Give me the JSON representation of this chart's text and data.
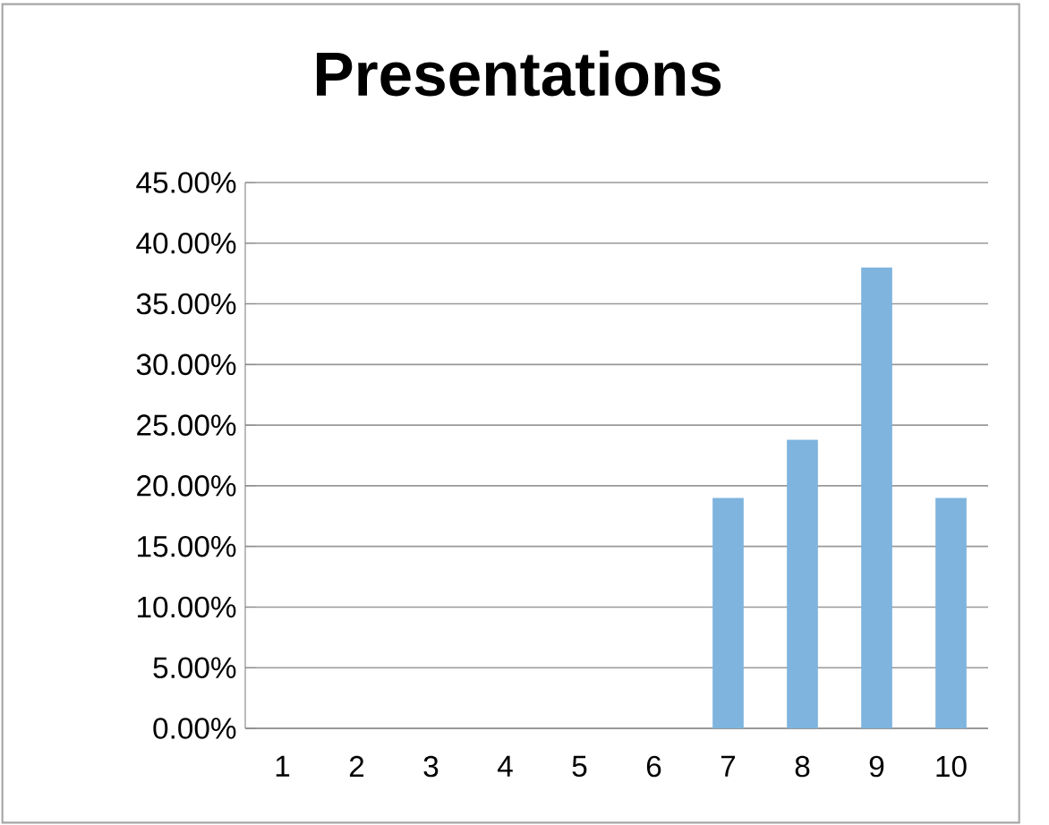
{
  "chart_data": {
    "type": "bar",
    "title": "Presentations",
    "categories": [
      "1",
      "2",
      "3",
      "4",
      "5",
      "6",
      "7",
      "8",
      "9",
      "10"
    ],
    "values": [
      0,
      0,
      0,
      0,
      0,
      0,
      19.0,
      23.8,
      38.0,
      19.0
    ],
    "color": "#7eb4de",
    "ylim": [
      0,
      45
    ],
    "yticks": [
      {
        "value": 0,
        "label": "0.00%"
      },
      {
        "value": 5,
        "label": "5.00%"
      },
      {
        "value": 10,
        "label": "10.00%"
      },
      {
        "value": 15,
        "label": "15.00%"
      },
      {
        "value": 20,
        "label": "20.00%"
      },
      {
        "value": 25,
        "label": "25.00%"
      },
      {
        "value": 30,
        "label": "30.00%"
      },
      {
        "value": 35,
        "label": "35.00%"
      },
      {
        "value": 40,
        "label": "40.00%"
      },
      {
        "value": 45,
        "label": "45.00%"
      }
    ],
    "grid": "y"
  }
}
